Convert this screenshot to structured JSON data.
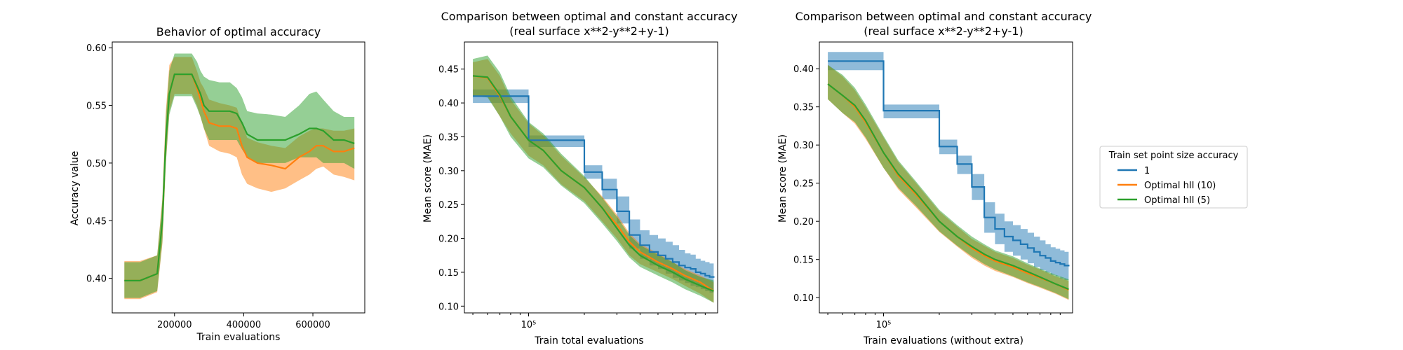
{
  "colors": {
    "blue": "#1f77b4",
    "orange": "#ff7f0e",
    "green": "#2ca02c"
  },
  "legend": {
    "title": "Train set point size accuracy",
    "entries": [
      "1",
      "Optimal hII (10)",
      "Optimal hII (5)"
    ],
    "placement": "right"
  },
  "chart_data": [
    {
      "type": "line",
      "title": "Behavior of optimal accuracy",
      "xlabel": "Train evaluations",
      "ylabel": "Accuracy value",
      "xscale": "linear",
      "xlim": [
        20000,
        750000
      ],
      "ylim": [
        0.37,
        0.605
      ],
      "xticks": [
        200000,
        400000,
        600000
      ],
      "xtick_labels": [
        "200000",
        "400000",
        "600000"
      ],
      "yticks": [
        0.4,
        0.45,
        0.5,
        0.55,
        0.6
      ],
      "ytick_labels": [
        "0.40",
        "0.45",
        "0.50",
        "0.55",
        "0.60"
      ],
      "series": [
        {
          "name": "Optimal hII (10)",
          "color": "orange",
          "x": [
            55000,
            100000,
            150000,
            165000,
            175000,
            185000,
            200000,
            230000,
            250000,
            265000,
            275000,
            285000,
            300000,
            330000,
            360000,
            380000,
            395000,
            410000,
            440000,
            480000,
            520000,
            560000,
            590000,
            610000,
            630000,
            660000,
            690000,
            720000
          ],
          "y": [
            0.398,
            0.398,
            0.404,
            0.45,
            0.52,
            0.56,
            0.577,
            0.577,
            0.577,
            0.565,
            0.555,
            0.545,
            0.535,
            0.532,
            0.532,
            0.53,
            0.515,
            0.505,
            0.5,
            0.498,
            0.495,
            0.505,
            0.51,
            0.515,
            0.515,
            0.51,
            0.51,
            0.513
          ],
          "upper": [
            0.415,
            0.415,
            0.42,
            0.47,
            0.545,
            0.585,
            0.592,
            0.592,
            0.592,
            0.58,
            0.57,
            0.565,
            0.555,
            0.552,
            0.55,
            0.548,
            0.535,
            0.522,
            0.518,
            0.515,
            0.513,
            0.523,
            0.528,
            0.53,
            0.53,
            0.528,
            0.528,
            0.53
          ],
          "lower": [
            0.382,
            0.382,
            0.388,
            0.43,
            0.5,
            0.545,
            0.56,
            0.56,
            0.56,
            0.55,
            0.54,
            0.53,
            0.515,
            0.51,
            0.508,
            0.505,
            0.49,
            0.482,
            0.478,
            0.475,
            0.478,
            0.485,
            0.49,
            0.495,
            0.497,
            0.49,
            0.488,
            0.485
          ]
        },
        {
          "name": "Optimal hII (5)",
          "color": "green",
          "x": [
            55000,
            100000,
            150000,
            165000,
            175000,
            185000,
            200000,
            230000,
            250000,
            265000,
            275000,
            285000,
            300000,
            330000,
            360000,
            380000,
            395000,
            410000,
            440000,
            480000,
            520000,
            560000,
            590000,
            610000,
            630000,
            660000,
            690000,
            720000
          ],
          "y": [
            0.398,
            0.398,
            0.404,
            0.45,
            0.52,
            0.56,
            0.577,
            0.577,
            0.577,
            0.567,
            0.56,
            0.55,
            0.545,
            0.545,
            0.545,
            0.543,
            0.535,
            0.525,
            0.52,
            0.52,
            0.52,
            0.525,
            0.53,
            0.53,
            0.528,
            0.52,
            0.52,
            0.517
          ],
          "upper": [
            0.414,
            0.414,
            0.42,
            0.468,
            0.54,
            0.58,
            0.595,
            0.595,
            0.595,
            0.588,
            0.58,
            0.575,
            0.572,
            0.57,
            0.57,
            0.565,
            0.557,
            0.545,
            0.543,
            0.542,
            0.54,
            0.55,
            0.56,
            0.562,
            0.555,
            0.545,
            0.54,
            0.54
          ],
          "lower": [
            0.383,
            0.383,
            0.389,
            0.432,
            0.5,
            0.542,
            0.558,
            0.558,
            0.558,
            0.548,
            0.54,
            0.53,
            0.52,
            0.52,
            0.52,
            0.52,
            0.512,
            0.505,
            0.5,
            0.5,
            0.5,
            0.505,
            0.505,
            0.505,
            0.5,
            0.5,
            0.5,
            0.495
          ]
        }
      ]
    },
    {
      "type": "line",
      "title": "Comparison between optimal and constant accuracy",
      "subtitle": "(real surface x**2-y**2+y-1)",
      "xlabel": "Train total evaluations",
      "ylabel": "Mean score (MAE)",
      "xscale": "log",
      "xlim": [
        45000,
        1050000
      ],
      "ylim": [
        0.09,
        0.49
      ],
      "xticks": [
        100000
      ],
      "xtick_labels": [
        "10⁵"
      ],
      "yticks": [
        0.1,
        0.15,
        0.2,
        0.25,
        0.3,
        0.35,
        0.4,
        0.45
      ],
      "ytick_labels": [
        "0.10",
        "0.15",
        "0.20",
        "0.25",
        "0.30",
        "0.35",
        "0.40",
        "0.45"
      ],
      "series": [
        {
          "name": "1",
          "color": "blue",
          "step": true,
          "x": [
            50000,
            100000,
            150000,
            200000,
            250000,
            300000,
            350000,
            400000,
            450000,
            500000,
            550000,
            600000,
            650000,
            700000,
            750000,
            800000,
            850000,
            900000,
            950000,
            1000000
          ],
          "y": [
            0.41,
            0.345,
            0.345,
            0.298,
            0.272,
            0.24,
            0.205,
            0.19,
            0.18,
            0.175,
            0.17,
            0.165,
            0.16,
            0.157,
            0.155,
            0.15,
            0.148,
            0.145,
            0.143,
            0.142
          ],
          "upper": [
            0.42,
            0.352,
            0.352,
            0.308,
            0.288,
            0.262,
            0.228,
            0.212,
            0.205,
            0.2,
            0.195,
            0.19,
            0.183,
            0.178,
            0.176,
            0.17,
            0.167,
            0.165,
            0.163,
            0.162
          ],
          "lower": [
            0.4,
            0.335,
            0.335,
            0.288,
            0.258,
            0.222,
            0.185,
            0.17,
            0.16,
            0.155,
            0.148,
            0.142,
            0.138,
            0.134,
            0.13,
            0.128,
            0.125,
            0.122,
            0.12,
            0.12
          ]
        },
        {
          "name": "Optimal hII (10)",
          "color": "orange",
          "x": [
            50000,
            60000,
            70000,
            80000,
            100000,
            120000,
            150000,
            200000,
            250000,
            300000,
            350000,
            400000,
            500000,
            600000,
            700000,
            850000,
            1000000
          ],
          "y": [
            0.44,
            0.437,
            0.41,
            0.38,
            0.345,
            0.33,
            0.3,
            0.275,
            0.245,
            0.22,
            0.195,
            0.18,
            0.165,
            0.155,
            0.145,
            0.135,
            0.122
          ],
          "upper": [
            0.46,
            0.465,
            0.44,
            0.405,
            0.37,
            0.352,
            0.322,
            0.29,
            0.262,
            0.235,
            0.208,
            0.192,
            0.178,
            0.165,
            0.155,
            0.145,
            0.135
          ],
          "lower": [
            0.41,
            0.41,
            0.38,
            0.355,
            0.322,
            0.308,
            0.28,
            0.255,
            0.225,
            0.2,
            0.175,
            0.162,
            0.15,
            0.14,
            0.13,
            0.118,
            0.105
          ]
        },
        {
          "name": "Optimal hII (5)",
          "color": "green",
          "x": [
            50000,
            60000,
            70000,
            80000,
            100000,
            120000,
            150000,
            200000,
            250000,
            300000,
            350000,
            400000,
            500000,
            600000,
            700000,
            850000,
            1000000
          ],
          "y": [
            0.44,
            0.438,
            0.412,
            0.38,
            0.345,
            0.33,
            0.3,
            0.275,
            0.245,
            0.215,
            0.19,
            0.175,
            0.16,
            0.15,
            0.14,
            0.13,
            0.122
          ],
          "upper": [
            0.465,
            0.47,
            0.445,
            0.41,
            0.372,
            0.355,
            0.325,
            0.292,
            0.26,
            0.232,
            0.205,
            0.19,
            0.176,
            0.165,
            0.153,
            0.143,
            0.138
          ],
          "lower": [
            0.41,
            0.408,
            0.38,
            0.35,
            0.318,
            0.305,
            0.278,
            0.252,
            0.222,
            0.196,
            0.172,
            0.158,
            0.145,
            0.135,
            0.125,
            0.115,
            0.105
          ]
        }
      ]
    },
    {
      "type": "line",
      "title": "Comparison between optimal and constant accuracy",
      "subtitle": "(real surface x**2-y**2+y-1)",
      "xlabel": "Train evaluations (without extra)",
      "ylabel": "Mean score (MAE)",
      "xscale": "log",
      "xlim": [
        45000,
        1050000
      ],
      "ylim": [
        0.08,
        0.435
      ],
      "xticks": [
        100000
      ],
      "xtick_labels": [
        "10⁵"
      ],
      "yticks": [
        0.1,
        0.15,
        0.2,
        0.25,
        0.3,
        0.35,
        0.4
      ],
      "ytick_labels": [
        "0.10",
        "0.15",
        "0.20",
        "0.25",
        "0.30",
        "0.35",
        "0.40"
      ],
      "series": [
        {
          "name": "1",
          "color": "blue",
          "step": true,
          "x": [
            50000,
            100000,
            150000,
            200000,
            250000,
            300000,
            350000,
            400000,
            450000,
            500000,
            550000,
            600000,
            650000,
            700000,
            750000,
            800000,
            850000,
            900000,
            950000,
            1000000
          ],
          "y": [
            0.41,
            0.345,
            0.345,
            0.298,
            0.275,
            0.245,
            0.205,
            0.19,
            0.18,
            0.175,
            0.17,
            0.165,
            0.16,
            0.155,
            0.152,
            0.148,
            0.146,
            0.144,
            0.142,
            0.141
          ],
          "upper": [
            0.422,
            0.353,
            0.353,
            0.307,
            0.286,
            0.262,
            0.225,
            0.21,
            0.2,
            0.195,
            0.19,
            0.185,
            0.18,
            0.175,
            0.17,
            0.166,
            0.164,
            0.162,
            0.16,
            0.16
          ],
          "lower": [
            0.398,
            0.335,
            0.335,
            0.288,
            0.262,
            0.228,
            0.185,
            0.17,
            0.16,
            0.155,
            0.15,
            0.145,
            0.14,
            0.136,
            0.133,
            0.13,
            0.128,
            0.125,
            0.123,
            0.122
          ]
        },
        {
          "name": "Optimal hII (10)",
          "color": "orange",
          "x": [
            50000,
            60000,
            70000,
            80000,
            100000,
            120000,
            150000,
            200000,
            250000,
            300000,
            350000,
            400000,
            500000,
            600000,
            700000,
            850000,
            1000000
          ],
          "y": [
            0.38,
            0.365,
            0.35,
            0.33,
            0.29,
            0.26,
            0.235,
            0.2,
            0.18,
            0.165,
            0.155,
            0.148,
            0.14,
            0.132,
            0.126,
            0.118,
            0.11
          ],
          "upper": [
            0.405,
            0.39,
            0.372,
            0.35,
            0.31,
            0.278,
            0.25,
            0.213,
            0.193,
            0.177,
            0.168,
            0.16,
            0.152,
            0.143,
            0.137,
            0.128,
            0.122
          ],
          "lower": [
            0.36,
            0.342,
            0.328,
            0.308,
            0.27,
            0.242,
            0.218,
            0.186,
            0.167,
            0.152,
            0.142,
            0.135,
            0.127,
            0.119,
            0.113,
            0.105,
            0.097
          ]
        },
        {
          "name": "Optimal hII (5)",
          "color": "green",
          "x": [
            50000,
            60000,
            70000,
            80000,
            100000,
            120000,
            150000,
            200000,
            250000,
            300000,
            350000,
            400000,
            500000,
            600000,
            700000,
            850000,
            1000000
          ],
          "y": [
            0.38,
            0.365,
            0.352,
            0.332,
            0.29,
            0.262,
            0.237,
            0.2,
            0.18,
            0.167,
            0.157,
            0.15,
            0.142,
            0.134,
            0.127,
            0.118,
            0.111
          ],
          "upper": [
            0.405,
            0.392,
            0.375,
            0.353,
            0.312,
            0.28,
            0.252,
            0.215,
            0.195,
            0.18,
            0.17,
            0.162,
            0.154,
            0.145,
            0.138,
            0.13,
            0.124
          ],
          "lower": [
            0.36,
            0.342,
            0.33,
            0.31,
            0.27,
            0.244,
            0.22,
            0.187,
            0.168,
            0.154,
            0.144,
            0.137,
            0.128,
            0.12,
            0.114,
            0.106,
            0.098
          ]
        }
      ]
    }
  ]
}
